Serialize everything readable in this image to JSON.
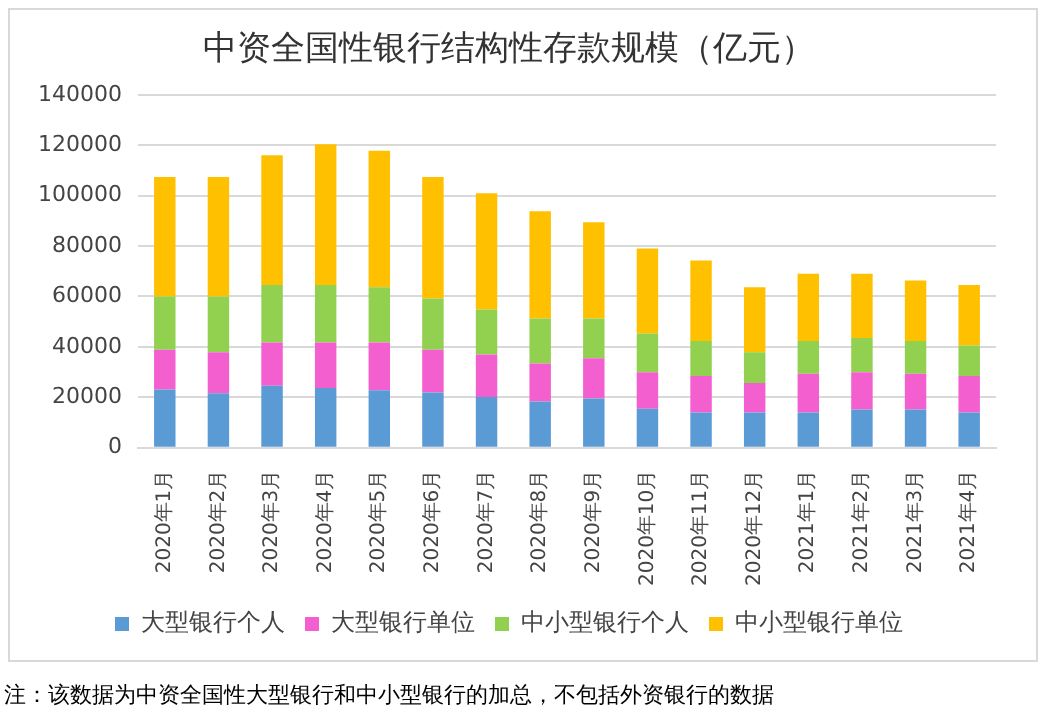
{
  "chart_data": {
    "type": "bar",
    "title": "中资全国性银行结构性存款规模（亿元）",
    "categories": [
      "2020年1月",
      "2020年2月",
      "2020年3月",
      "2020年4月",
      "2020年5月",
      "2020年6月",
      "2020年7月",
      "2020年8月",
      "2020年9月",
      "2020年10月",
      "2020年11月",
      "2020年12月",
      "2021年1月",
      "2021年2月",
      "2021年3月",
      "2021年4月"
    ],
    "series": [
      {
        "name": "大型银行个人",
        "color": "#5b9bd5",
        "values": [
          23100,
          21600,
          24600,
          23700,
          22800,
          21900,
          20100,
          18300,
          19500,
          15400,
          13900,
          13900,
          13900,
          15100,
          15100,
          13900
        ]
      },
      {
        "name": "大型银行单位",
        "color": "#f35fcf",
        "values": [
          15700,
          16300,
          17100,
          18000,
          18900,
          16900,
          16900,
          15100,
          16000,
          14500,
          14500,
          11800,
          15400,
          14800,
          14200,
          14500
        ]
      },
      {
        "name": "中小型银行个人",
        "color": "#92d050",
        "values": [
          21200,
          22100,
          22800,
          22800,
          21900,
          20400,
          17800,
          17800,
          15700,
          15400,
          13900,
          12200,
          13000,
          13600,
          13000,
          12100
        ]
      },
      {
        "name": "中小型银行单位",
        "color": "#ffc000",
        "values": [
          47400,
          47400,
          51500,
          55900,
          54200,
          48200,
          46100,
          42600,
          38200,
          33700,
          32000,
          25700,
          26700,
          25500,
          24000,
          24000
        ]
      }
    ],
    "stacked": true,
    "ylim": [
      0,
      140000
    ],
    "yticks": [
      0,
      20000,
      40000,
      60000,
      80000,
      100000,
      120000,
      140000
    ],
    "grid": "y",
    "legend": "bottom",
    "annotations": [
      "注：该数据为中资全国性大型银行和中小型银行的加总，不包括外资银行的数据"
    ]
  }
}
